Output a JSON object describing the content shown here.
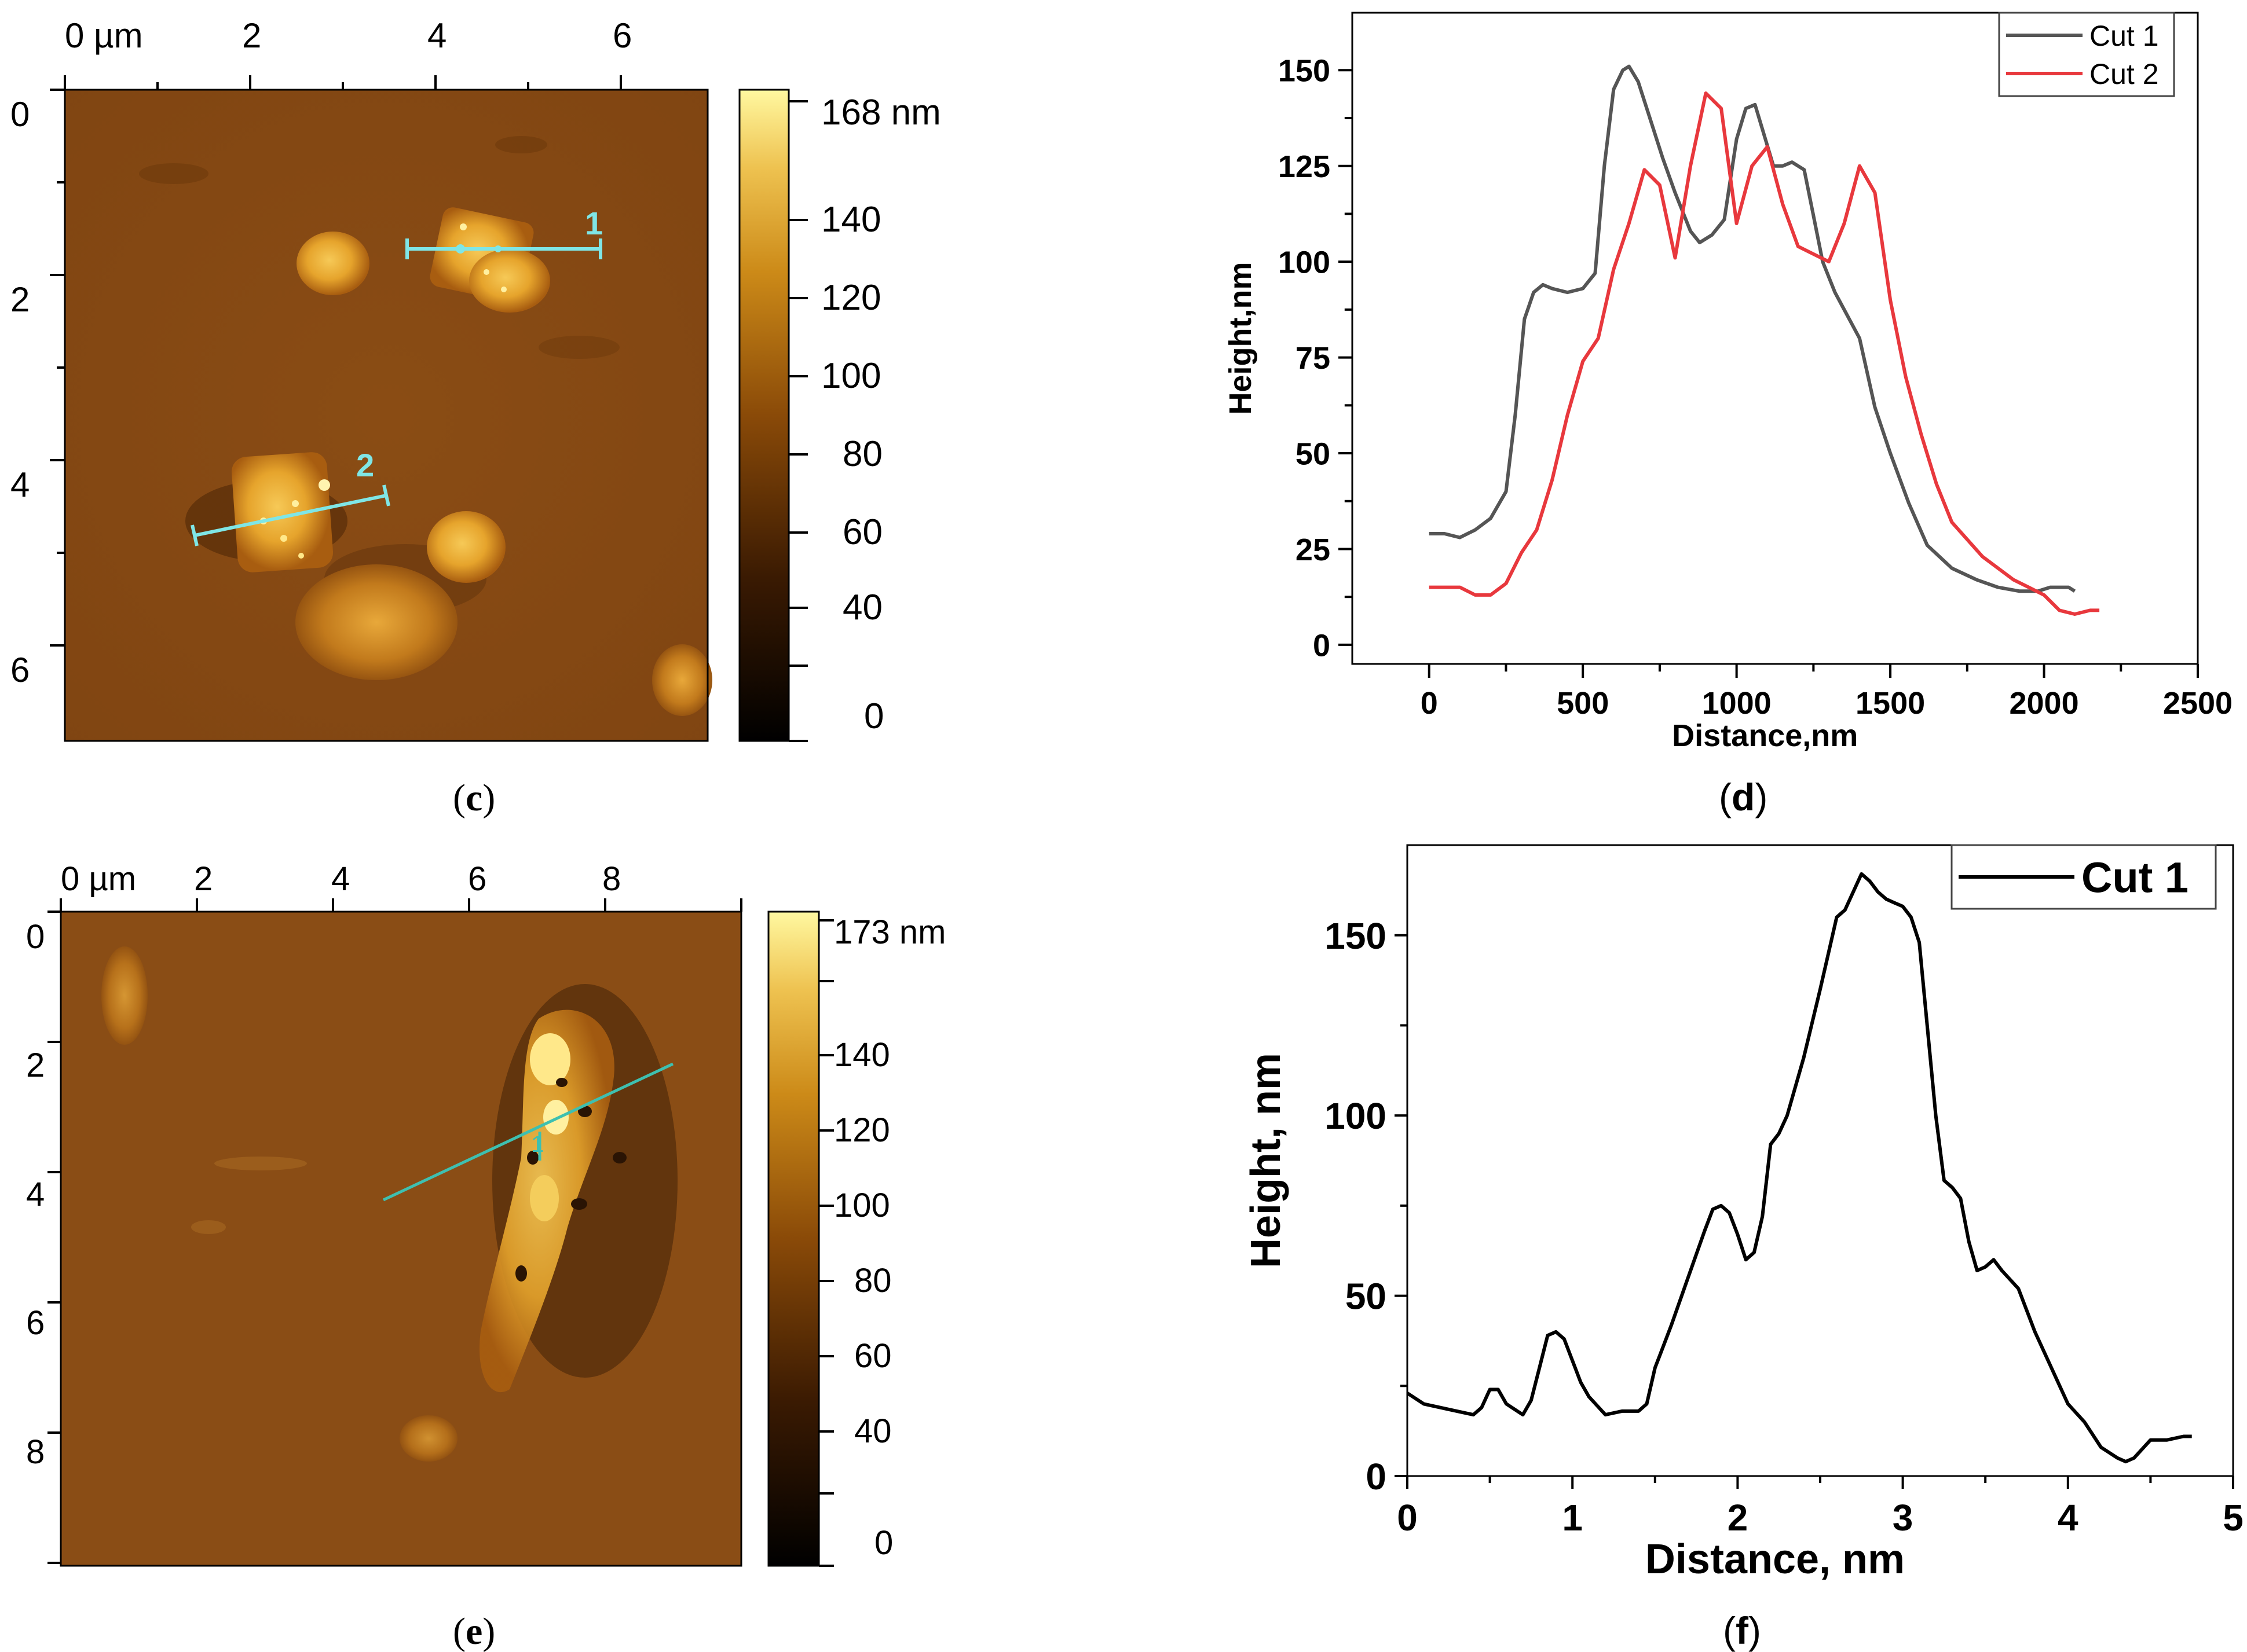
{
  "afm_c": {
    "x_ticks": [
      "0 µm",
      "2",
      "4",
      "6"
    ],
    "y_ticks": [
      "0",
      "2",
      "4",
      "6"
    ],
    "scale_max_label": "168 nm",
    "scale_ticks": [
      "140",
      "120",
      "100",
      "80",
      "60",
      "40",
      "0"
    ],
    "cut_labels": [
      "1",
      "2"
    ],
    "panel_label": "c"
  },
  "afm_e": {
    "x_ticks": [
      "0 µm",
      "2",
      "4",
      "6",
      "8"
    ],
    "y_ticks": [
      "0",
      "2",
      "4",
      "6",
      "8"
    ],
    "scale_max_label": "173 nm",
    "scale_ticks": [
      "140",
      "120",
      "100",
      "80",
      "60",
      "40",
      "0"
    ],
    "cut_labels": [
      "1"
    ],
    "panel_label": "e"
  },
  "colors": {
    "cut1_d": "#555555",
    "cut2_d": "#e8383d",
    "cut_f": "#000000",
    "afm_line": "#7fe6e6"
  },
  "chart_data": [
    {
      "id": "d",
      "type": "line",
      "title": "",
      "xlabel": "Distance,nm",
      "ylabel": "Height,nm",
      "xlim": [
        -250,
        2500
      ],
      "ylim": [
        -5,
        165
      ],
      "xticks": [
        0,
        500,
        1000,
        1500,
        2000,
        2500
      ],
      "yticks": [
        0,
        25,
        50,
        75,
        100,
        125,
        150
      ],
      "legend": "top-right",
      "panel_label": "d",
      "series": [
        {
          "name": "Cut 1",
          "color": "#555555",
          "x": [
            0,
            50,
            100,
            150,
            200,
            250,
            280,
            310,
            340,
            370,
            400,
            450,
            500,
            540,
            570,
            600,
            630,
            650,
            680,
            720,
            760,
            800,
            850,
            880,
            920,
            960,
            1000,
            1030,
            1060,
            1090,
            1120,
            1150,
            1180,
            1220,
            1250,
            1280,
            1320,
            1400,
            1450,
            1500,
            1560,
            1620,
            1700,
            1780,
            1850,
            1920,
            1980,
            2020,
            2050,
            2080,
            2100
          ],
          "y": [
            29,
            29,
            28,
            30,
            33,
            40,
            60,
            85,
            92,
            94,
            93,
            92,
            93,
            97,
            125,
            145,
            150,
            151,
            147,
            137,
            127,
            118,
            108,
            105,
            107,
            111,
            132,
            140,
            141,
            133,
            125,
            125,
            126,
            124,
            112,
            100,
            92,
            80,
            62,
            50,
            37,
            26,
            20,
            17,
            15,
            14,
            14,
            15,
            15,
            15,
            14
          ]
        },
        {
          "name": "Cut 2",
          "color": "#e8383d",
          "x": [
            0,
            50,
            100,
            150,
            200,
            250,
            300,
            350,
            400,
            450,
            500,
            550,
            600,
            650,
            700,
            750,
            800,
            850,
            900,
            950,
            1000,
            1050,
            1100,
            1150,
            1200,
            1250,
            1300,
            1350,
            1400,
            1450,
            1500,
            1550,
            1600,
            1650,
            1700,
            1800,
            1900,
            1950,
            2000,
            2050,
            2100,
            2150,
            2180
          ],
          "y": [
            15,
            15,
            15,
            13,
            13,
            16,
            24,
            30,
            43,
            60,
            74,
            80,
            98,
            110,
            124,
            120,
            101,
            125,
            144,
            140,
            110,
            125,
            130,
            115,
            104,
            102,
            100,
            110,
            125,
            118,
            90,
            70,
            55,
            42,
            32,
            23,
            17,
            15,
            13,
            9,
            8,
            9,
            9
          ]
        }
      ]
    },
    {
      "id": "f",
      "type": "line",
      "title": "",
      "xlabel": "Distance, nm",
      "ylabel": "Height, nm",
      "xlim": [
        0,
        5
      ],
      "ylim": [
        0,
        175
      ],
      "xticks": [
        0,
        1,
        2,
        3,
        4,
        5
      ],
      "yticks": [
        0,
        50,
        100,
        150
      ],
      "legend": "top-right",
      "panel_label": "f",
      "series": [
        {
          "name": "Cut 1",
          "color": "#000000",
          "x": [
            0,
            0.1,
            0.2,
            0.3,
            0.4,
            0.45,
            0.5,
            0.55,
            0.6,
            0.7,
            0.75,
            0.8,
            0.85,
            0.9,
            0.95,
            1.0,
            1.05,
            1.1,
            1.2,
            1.3,
            1.35,
            1.4,
            1.45,
            1.5,
            1.55,
            1.6,
            1.7,
            1.8,
            1.85,
            1.9,
            1.95,
            2.0,
            2.05,
            2.1,
            2.15,
            2.2,
            2.25,
            2.3,
            2.4,
            2.5,
            2.6,
            2.65,
            2.7,
            2.75,
            2.8,
            2.85,
            2.9,
            2.95,
            3.0,
            3.05,
            3.1,
            3.2,
            3.25,
            3.3,
            3.35,
            3.4,
            3.45,
            3.5,
            3.55,
            3.6,
            3.7,
            3.8,
            3.9,
            4.0,
            4.1,
            4.2,
            4.3,
            4.35,
            4.4,
            4.5,
            4.6,
            4.7,
            4.75
          ],
          "y": [
            23,
            20,
            19,
            18,
            17,
            19,
            24,
            24,
            20,
            17,
            21,
            30,
            39,
            40,
            38,
            32,
            26,
            22,
            17,
            18,
            18,
            18,
            20,
            30,
            36,
            42,
            55,
            68,
            74,
            75,
            73,
            67,
            60,
            62,
            72,
            92,
            95,
            100,
            116,
            135,
            155,
            157,
            162,
            167,
            165,
            162,
            160,
            159,
            158,
            155,
            148,
            100,
            82,
            80,
            77,
            65,
            57,
            58,
            60,
            57,
            52,
            40,
            30,
            20,
            15,
            8,
            5,
            4,
            5,
            10,
            10,
            11,
            11
          ]
        }
      ]
    }
  ]
}
